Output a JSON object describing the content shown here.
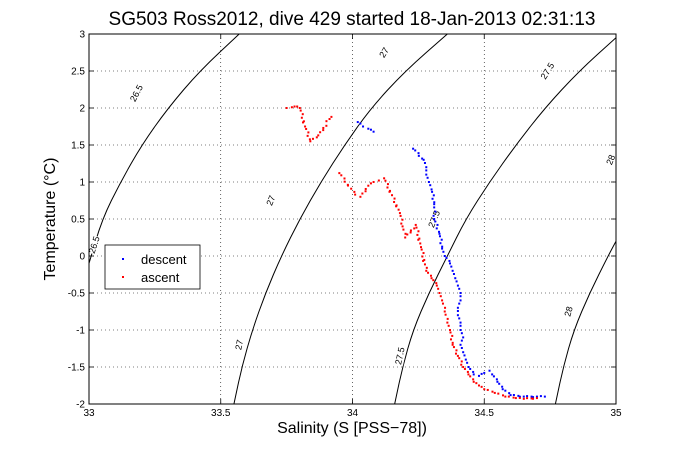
{
  "chart_data": {
    "type": "scatter",
    "title": "SG503 Ross2012, dive 429 started 18-Jan-2013 02:31:13",
    "xlabel": "Salinity (S [PSS−78])",
    "ylabel": "Temperature (°C)",
    "xlim": [
      33,
      35
    ],
    "ylim": [
      -2,
      3
    ],
    "xticks": [
      "33",
      "33.5",
      "34",
      "34.5",
      "35"
    ],
    "yticks": [
      "-2",
      "-1.5",
      "-1",
      "-0.5",
      "0",
      "0.5",
      "1",
      "1.5",
      "2",
      "2.5",
      "3"
    ],
    "grid": true,
    "legend_position": "left",
    "contours": [
      {
        "label": "26.5",
        "points": [
          [
            33.0,
            -0.1
          ],
          [
            33.05,
            0.5
          ],
          [
            33.12,
            1.0
          ],
          [
            33.2,
            1.5
          ],
          [
            33.3,
            2.0
          ],
          [
            33.42,
            2.5
          ],
          [
            33.57,
            3.0
          ]
        ]
      },
      {
        "label": "27",
        "points": [
          [
            33.55,
            -2.0
          ],
          [
            33.58,
            -1.5
          ],
          [
            33.62,
            -1.0
          ],
          [
            33.67,
            -0.5
          ],
          [
            33.73,
            0.0
          ],
          [
            33.8,
            0.5
          ],
          [
            33.88,
            1.0
          ],
          [
            33.97,
            1.5
          ],
          [
            34.07,
            2.0
          ],
          [
            34.2,
            2.5
          ],
          [
            34.36,
            3.0
          ]
        ]
      },
      {
        "label": "27.5",
        "points": [
          [
            34.16,
            -2.0
          ],
          [
            34.19,
            -1.5
          ],
          [
            34.23,
            -1.0
          ],
          [
            34.29,
            -0.5
          ],
          [
            34.36,
            0.0
          ],
          [
            34.43,
            0.5
          ],
          [
            34.52,
            1.0
          ],
          [
            34.62,
            1.5
          ],
          [
            34.73,
            2.0
          ],
          [
            34.86,
            2.5
          ],
          [
            35.0,
            2.95
          ]
        ]
      },
      {
        "label": "28",
        "points": [
          [
            34.77,
            -2.0
          ],
          [
            34.8,
            -1.5
          ],
          [
            34.84,
            -1.0
          ],
          [
            34.9,
            -0.5
          ],
          [
            34.97,
            0.0
          ],
          [
            35.0,
            0.2
          ]
        ]
      }
    ],
    "contour_labels": [
      {
        "text": "26.5",
        "x": 33.18,
        "y": 2.2,
        "angle": -62
      },
      {
        "text": "26.5",
        "x": 33.02,
        "y": 0.15,
        "angle": -72
      },
      {
        "text": "27",
        "x": 34.12,
        "y": 2.75,
        "angle": -58
      },
      {
        "text": "27",
        "x": 33.69,
        "y": 0.75,
        "angle": -68
      },
      {
        "text": "27",
        "x": 33.57,
        "y": -1.2,
        "angle": -78
      },
      {
        "text": "27.5",
        "x": 34.74,
        "y": 2.5,
        "angle": -58
      },
      {
        "text": "27.5",
        "x": 34.31,
        "y": 0.5,
        "angle": -68
      },
      {
        "text": "27.5",
        "x": 34.18,
        "y": -1.35,
        "angle": -78
      },
      {
        "text": "28",
        "x": 34.98,
        "y": 1.3,
        "angle": -68
      },
      {
        "text": "28",
        "x": 34.82,
        "y": -0.75,
        "angle": -75
      }
    ],
    "series": [
      {
        "name": "descent",
        "color": "#0000ff",
        "points": [
          [
            34.02,
            1.81
          ],
          [
            34.03,
            1.79
          ],
          [
            34.04,
            1.75
          ],
          [
            34.06,
            1.72
          ],
          [
            34.08,
            1.68
          ],
          [
            34.23,
            1.45
          ],
          [
            34.27,
            1.3
          ],
          [
            34.28,
            1.2
          ],
          [
            34.28,
            1.1
          ],
          [
            34.29,
            1.0
          ],
          [
            34.3,
            0.9
          ],
          [
            34.31,
            0.7
          ],
          [
            34.31,
            0.5
          ],
          [
            34.33,
            0.3
          ],
          [
            34.34,
            0.1
          ],
          [
            34.35,
            0.0
          ],
          [
            34.37,
            -0.1
          ],
          [
            34.38,
            -0.2
          ],
          [
            34.39,
            -0.3
          ],
          [
            34.4,
            -0.4
          ],
          [
            34.41,
            -0.5
          ],
          [
            34.41,
            -0.6
          ],
          [
            34.4,
            -0.7
          ],
          [
            34.4,
            -0.8
          ],
          [
            34.41,
            -0.9
          ],
          [
            34.41,
            -1.0
          ],
          [
            34.42,
            -1.1
          ],
          [
            34.41,
            -1.2
          ],
          [
            34.42,
            -1.3
          ],
          [
            34.43,
            -1.4
          ],
          [
            34.44,
            -1.5
          ],
          [
            34.46,
            -1.6
          ],
          [
            34.48,
            -1.62
          ],
          [
            34.5,
            -1.58
          ],
          [
            34.52,
            -1.55
          ],
          [
            34.53,
            -1.6
          ],
          [
            34.55,
            -1.7
          ],
          [
            34.57,
            -1.8
          ],
          [
            34.6,
            -1.88
          ],
          [
            34.65,
            -1.9
          ],
          [
            34.7,
            -1.9
          ],
          [
            34.73,
            -1.9
          ]
        ]
      },
      {
        "name": "ascent",
        "color": "#ff0000",
        "points": [
          [
            33.75,
            2.0
          ],
          [
            33.77,
            2.01
          ],
          [
            33.78,
            2.02
          ],
          [
            33.79,
            2.02
          ],
          [
            33.8,
            2.0
          ],
          [
            33.82,
            1.75
          ],
          [
            33.84,
            1.55
          ],
          [
            33.87,
            1.63
          ],
          [
            33.92,
            1.88
          ],
          [
            33.95,
            1.12
          ],
          [
            34.01,
            0.83
          ],
          [
            34.03,
            0.8
          ],
          [
            34.06,
            0.95
          ],
          [
            34.08,
            1.0
          ],
          [
            34.1,
            1.02
          ],
          [
            34.12,
            1.05
          ],
          [
            34.18,
            0.58
          ],
          [
            34.19,
            0.4
          ],
          [
            34.2,
            0.25
          ],
          [
            34.24,
            0.42
          ],
          [
            34.26,
            0.12
          ],
          [
            34.28,
            -0.2
          ],
          [
            34.3,
            -0.3
          ],
          [
            34.32,
            -0.4
          ],
          [
            34.33,
            -0.5
          ],
          [
            34.34,
            -0.6
          ],
          [
            34.35,
            -0.75
          ],
          [
            34.36,
            -0.9
          ],
          [
            34.37,
            -1.0
          ],
          [
            34.38,
            -1.2
          ],
          [
            34.4,
            -1.35
          ],
          [
            34.42,
            -1.5
          ],
          [
            34.44,
            -1.6
          ],
          [
            34.46,
            -1.7
          ],
          [
            34.48,
            -1.75
          ],
          [
            34.5,
            -1.8
          ],
          [
            34.54,
            -1.85
          ],
          [
            34.58,
            -1.9
          ],
          [
            34.62,
            -1.92
          ],
          [
            34.65,
            -1.93
          ],
          [
            34.7,
            -1.92
          ]
        ]
      }
    ]
  }
}
